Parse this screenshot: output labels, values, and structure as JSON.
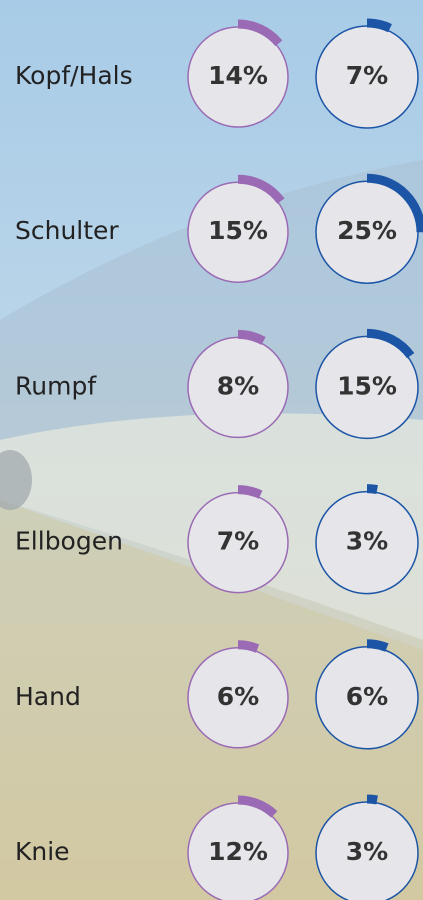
{
  "chart_data": {
    "type": "radial",
    "categories": [
      "Kopf/Hals",
      "Schulter",
      "Rumpf",
      "Ellbogen",
      "Hand",
      "Knie"
    ],
    "series": [
      {
        "color": "#9a6bb4",
        "values": [
          14,
          15,
          8,
          7,
          6,
          12
        ],
        "value_labels": [
          "14%",
          "15%",
          "8%",
          "7%",
          "6%",
          "12%"
        ]
      },
      {
        "color": "#1c55a6",
        "values": [
          7,
          25,
          15,
          3,
          6,
          3
        ],
        "value_labels": [
          "7%",
          "25%",
          "15%",
          "3%",
          "6%",
          "3%"
        ]
      }
    ]
  }
}
